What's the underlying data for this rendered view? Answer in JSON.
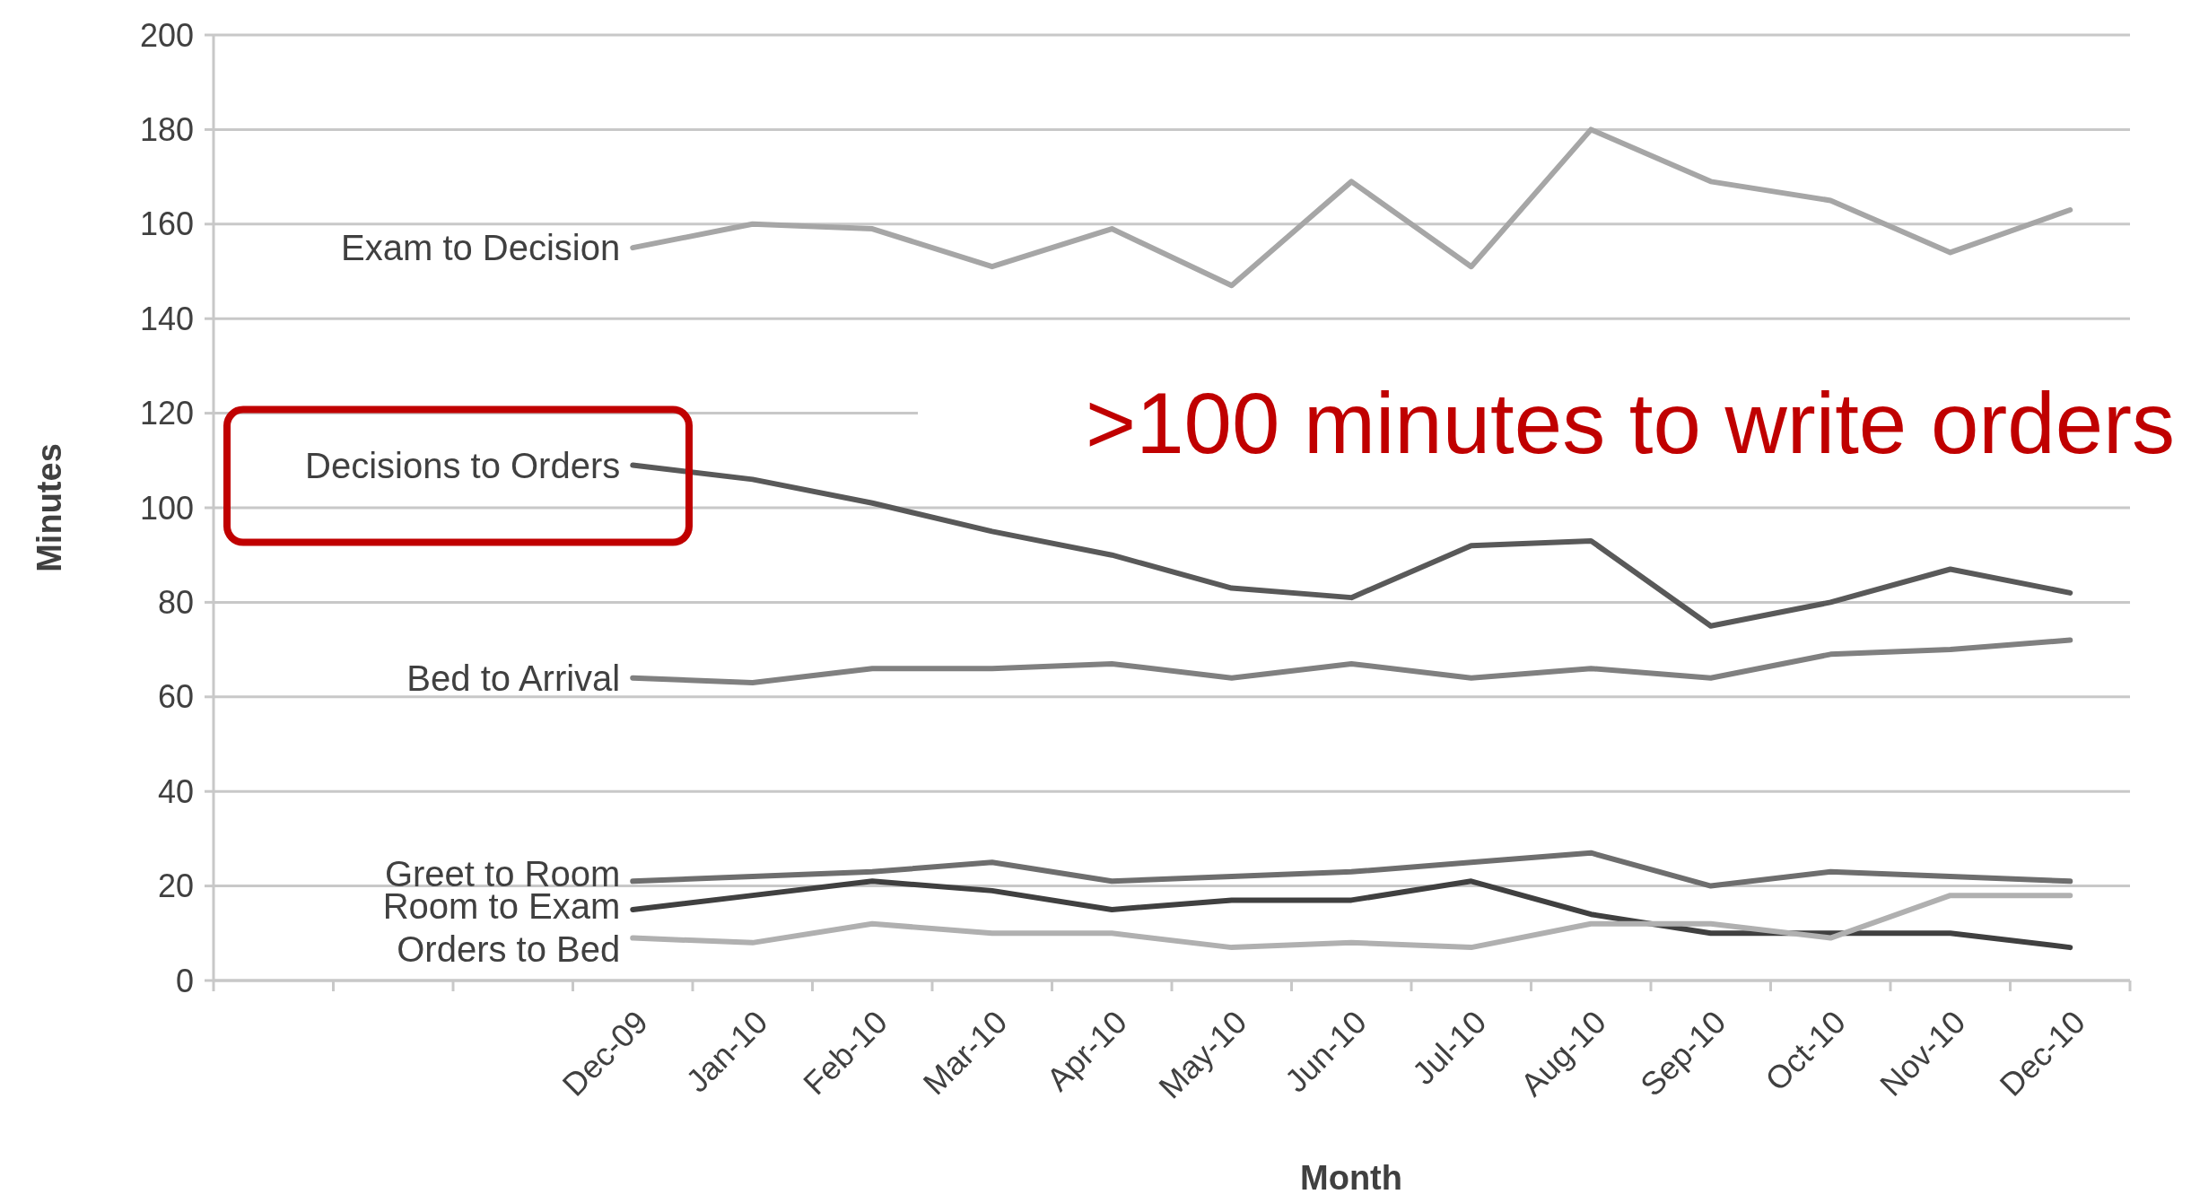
{
  "chart_data": {
    "type": "line",
    "xlabel": "Month",
    "ylabel": "Minutes",
    "categories": [
      null,
      null,
      null,
      "Dec-09",
      "Jan-10",
      "Feb-10",
      "Mar-10",
      "Apr-10",
      "May-10",
      "Jun-10",
      "Jul-10",
      "Aug-10",
      "Sep-10",
      "Oct-10",
      "Nov-10",
      "Dec-10"
    ],
    "series": [
      {
        "name": "Exam to Decision",
        "color": "#a6a6a6",
        "values": [
          null,
          null,
          null,
          155,
          160,
          159,
          151,
          159,
          147,
          169,
          151,
          180,
          169,
          165,
          154,
          163
        ]
      },
      {
        "name": "Decisions to Orders",
        "color": "#595959",
        "values": [
          null,
          null,
          null,
          109,
          106,
          101,
          95,
          90,
          83,
          81,
          92,
          93,
          75,
          80,
          87,
          82
        ]
      },
      {
        "name": "Bed to Arrival",
        "color": "#808080",
        "values": [
          null,
          null,
          null,
          64,
          63,
          66,
          66,
          67,
          64,
          67,
          64,
          66,
          64,
          69,
          70,
          72
        ]
      },
      {
        "name": "Greet to Room",
        "color": "#6e6e6e",
        "values": [
          null,
          null,
          null,
          21,
          22,
          23,
          25,
          21,
          22,
          23,
          25,
          27,
          20,
          23,
          22,
          21
        ]
      },
      {
        "name": "Room to Exam",
        "color": "#404040",
        "values": [
          null,
          null,
          null,
          15,
          18,
          21,
          19,
          15,
          17,
          17,
          21,
          14,
          10,
          10,
          10,
          7
        ]
      },
      {
        "name": "Orders to Bed",
        "color": "#b0b0b0",
        "values": [
          null,
          null,
          null,
          9,
          8,
          12,
          10,
          10,
          7,
          8,
          7,
          12,
          12,
          9,
          18,
          18
        ]
      }
    ],
    "ylim": [
      0,
      200
    ],
    "yticks": [
      0,
      20,
      40,
      60,
      80,
      100,
      120,
      140,
      160,
      180,
      200
    ],
    "grid": "y",
    "marker": "none",
    "line_style": "solid",
    "annotations": [
      ">100 minutes to write orders"
    ]
  }
}
